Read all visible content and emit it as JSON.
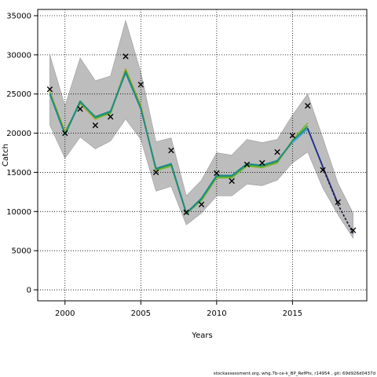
{
  "chart_data": {
    "type": "line",
    "xlabel": "Years",
    "ylabel": "Catch",
    "xlim": [
      1998.2,
      2019.9
    ],
    "ylim": [
      -1400,
      35800
    ],
    "xticks": [
      2000,
      2005,
      2010,
      2015
    ],
    "yticks": [
      0,
      5000,
      10000,
      15000,
      20000,
      25000,
      30000,
      35000
    ],
    "grid": true,
    "band": {
      "x": [
        1999,
        2000,
        2001,
        2002,
        2003,
        2004,
        2005,
        2006,
        2007,
        2008,
        2009,
        2010,
        2011,
        2012,
        2013,
        2014,
        2015,
        2016,
        2017,
        2018,
        2019
      ],
      "lower": [
        21000,
        16800,
        19500,
        18000,
        19000,
        21800,
        19200,
        12600,
        13200,
        8300,
        9800,
        12000,
        12000,
        13500,
        13300,
        14000,
        16200,
        17600,
        13000,
        9600,
        6600
      ],
      "upper": [
        30000,
        23500,
        29600,
        26700,
        27300,
        34400,
        27800,
        18900,
        19400,
        12000,
        14000,
        17500,
        17200,
        19200,
        18800,
        19200,
        22300,
        25000,
        19400,
        13600,
        9800
      ]
    },
    "series": [
      {
        "x": [
          1999,
          2000,
          2001,
          2002,
          2003,
          2004,
          2005,
          2006,
          2007,
          2008,
          2009,
          2010,
          2011,
          2012,
          2013,
          2014,
          2015
        ],
        "values": [
          25300,
          20200,
          23800,
          21800,
          22600,
          28200,
          23500,
          15300,
          15900,
          9900,
          11500,
          14400,
          14400,
          15900,
          15700,
          16300,
          18900
        ],
        "color": "#b8a020"
      },
      {
        "x": [
          1999,
          2000,
          2001,
          2002,
          2003,
          2004,
          2005,
          2006,
          2007,
          2008,
          2009,
          2010,
          2011,
          2012,
          2013,
          2014,
          2015,
          2016
        ],
        "values": [
          25200,
          20000,
          23900,
          21900,
          22500,
          28000,
          23300,
          15200,
          15800,
          9800,
          11400,
          14300,
          14300,
          15800,
          15600,
          16200,
          19100,
          21300
        ],
        "color": "#7ab83a"
      },
      {
        "x": [
          1999,
          2000,
          2001,
          2002,
          2003,
          2004,
          2005,
          2006,
          2007,
          2008,
          2009,
          2010,
          2011,
          2012,
          2013,
          2014,
          2015,
          2016
        ],
        "values": [
          25100,
          19900,
          24100,
          22000,
          22700,
          27900,
          23200,
          15400,
          16000,
          9700,
          11600,
          14500,
          14500,
          16000,
          15800,
          16400,
          19000,
          20900
        ],
        "color": "#2a9a4a"
      },
      {
        "x": [
          1999,
          2000,
          2001,
          2002,
          2003,
          2004,
          2005,
          2006,
          2007,
          2008,
          2009,
          2010,
          2011,
          2012,
          2013,
          2014,
          2015,
          2016,
          2017
        ],
        "values": [
          25000,
          19800,
          24000,
          22100,
          22800,
          27700,
          23100,
          15500,
          16100,
          9800,
          11700,
          14600,
          14600,
          16100,
          15900,
          16500,
          18900,
          20600,
          15700
        ],
        "color": "#1c8a8a"
      },
      {
        "x": [
          2015,
          2016,
          2017
        ],
        "values": [
          18800,
          20500,
          15800
        ],
        "color": "#4aa8e0"
      },
      {
        "x": [
          2016,
          2017,
          2018
        ],
        "values": [
          20600,
          15700,
          11000
        ],
        "color": "#2a2a8a"
      },
      {
        "x": [
          2017,
          2018,
          2019
        ],
        "values": [
          15600,
          10900,
          7200
        ],
        "color": "#222244",
        "dashed": true
      }
    ],
    "observed": {
      "x": [
        1999,
        2000,
        2001,
        2002,
        2003,
        2004,
        2005,
        2006,
        2007,
        2008,
        2009,
        2010,
        2011,
        2012,
        2013,
        2014,
        2015,
        2016,
        2017,
        2018,
        2019
      ],
      "values": [
        25600,
        20000,
        23100,
        21000,
        22100,
        29800,
        26200,
        15000,
        17800,
        9900,
        10900,
        14900,
        13900,
        16000,
        16200,
        17600,
        19700,
        23500,
        15300,
        11200,
        7600
      ]
    }
  },
  "footer": "stockassessment.org, whg.7b-ce-k_BP_RefPts, r14954 , git: 69d926d0437d"
}
